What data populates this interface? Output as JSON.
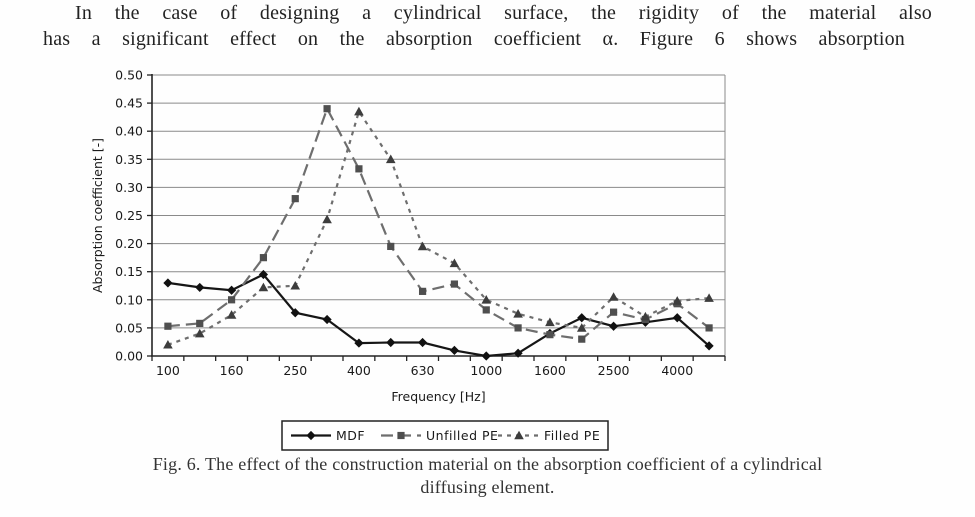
{
  "page": {
    "body_text": {
      "line1": "In the case of designing a cylindrical surface, the rigidity of the material also",
      "line2": "has a significant effect on the absorption coefficient α. Figure 6 shows absorption"
    },
    "caption": {
      "line1": "Fig. 6. The effect of the construction material on the absorption coefficient of a cylindrical",
      "line2": "diffusing element."
    }
  },
  "chart_data": {
    "type": "line",
    "title": "",
    "xlabel": "Frequency [Hz]",
    "ylabel": "Absorption coefficient [-]",
    "ylim": [
      0,
      0.5
    ],
    "ytick_step": 0.05,
    "ytick_labels": [
      "0.00",
      "0.05",
      "0.10",
      "0.15",
      "0.20",
      "0.25",
      "0.30",
      "0.35",
      "0.40",
      "0.45",
      "0.50"
    ],
    "grid": true,
    "legend_position": "bottom",
    "categories": [
      100,
      125,
      160,
      200,
      250,
      315,
      400,
      500,
      630,
      800,
      1000,
      1250,
      1600,
      2000,
      2500,
      3150,
      4000,
      5000
    ],
    "xtick_labels": [
      "100",
      "160",
      "250",
      "400",
      "630",
      "1000",
      "1600",
      "2500",
      "4000"
    ],
    "series": [
      {
        "name": "MDF",
        "marker": "diamond",
        "line_style": "solid",
        "color": "#161616",
        "marker_color": "#111111",
        "values": [
          0.13,
          0.122,
          0.117,
          0.145,
          0.077,
          0.065,
          0.023,
          0.024,
          0.024,
          0.01,
          0.0,
          0.005,
          0.04,
          0.068,
          0.053,
          0.06,
          0.068,
          0.018
        ]
      },
      {
        "name": "Unfilled PE",
        "marker": "square",
        "line_style": "dashed",
        "color": "#6e6e6e",
        "marker_color": "#4f4f4f",
        "values": [
          0.053,
          0.058,
          0.1,
          0.175,
          0.28,
          0.44,
          0.333,
          0.195,
          0.115,
          0.128,
          0.082,
          0.05,
          0.038,
          0.03,
          0.078,
          0.065,
          0.093,
          0.05
        ]
      },
      {
        "name": "Filled PE",
        "marker": "triangle",
        "line_style": "dashdot",
        "color": "#6e6e6e",
        "marker_color": "#3d3d3d",
        "values": [
          0.02,
          0.04,
          0.073,
          0.122,
          0.125,
          0.243,
          0.435,
          0.35,
          0.195,
          0.165,
          0.1,
          0.075,
          0.06,
          0.05,
          0.105,
          0.07,
          0.098,
          0.103
        ]
      }
    ],
    "colors": {
      "grid": "#8a8a8a",
      "axis": "#242424",
      "legend_border": "#222222"
    }
  }
}
